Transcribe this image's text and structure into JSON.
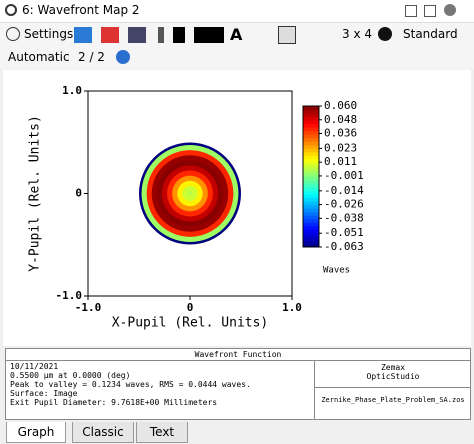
{
  "window": {
    "title": "6: Wavefront Map 2"
  },
  "toolbar": {
    "settings": "Settings",
    "layout": "3 x 4",
    "style": "Standard",
    "scale": "Automatic",
    "page": "2 / 2"
  },
  "chart_data": {
    "type": "radial",
    "xlabel": "X-Pupil (Rel. Units)",
    "ylabel": "Y-Pupil (Rel. Units)",
    "xlim": [
      -1,
      1
    ],
    "ylim": [
      -1,
      1
    ],
    "xticks": [
      {
        "value": -1,
        "label": "-1.0"
      },
      0,
      {
        "value": 1,
        "label": "1.0"
      }
    ],
    "yticks": [
      {
        "value": -1,
        "label": "-1.0"
      },
      0,
      {
        "value": 1,
        "label": "1.0"
      }
    ],
    "r": [
      0,
      0.1,
      0.2,
      0.3,
      0.4,
      0.5,
      0.6,
      0.7,
      0.8,
      0.9,
      1.0
    ],
    "values": [
      0.005,
      0.0077,
      0.0155,
      0.027,
      0.04,
      0.052,
      0.059,
      0.057,
      0.04,
      0.002,
      -0.063
    ],
    "colorbar": {
      "label": "Waves",
      "lim": [
        -0.063,
        0.06
      ],
      "ticks": [
        {
          "value": 0.06,
          "label": "0.060"
        },
        0.048,
        0.036,
        0.023,
        0.011,
        -0.001,
        -0.014,
        -0.026,
        -0.038,
        -0.051,
        -0.063
      ]
    }
  },
  "info": {
    "header": "Wavefront Function",
    "lines": [
      "10/11/2021",
      "0.5500 µm at 0.0000 (deg)",
      "Peak to valley = 0.1234 waves, RMS = 0.0444 waves.",
      "Surface: Image",
      "Exit Pupil Diameter: 9.7618E+00 Millimeters"
    ],
    "company": "Zemax",
    "product": "OpticStudio",
    "file": "Zernike_Phase_Plate_Problem_SA.zos"
  },
  "tabs": [
    "Graph",
    "Classic",
    "Text"
  ]
}
